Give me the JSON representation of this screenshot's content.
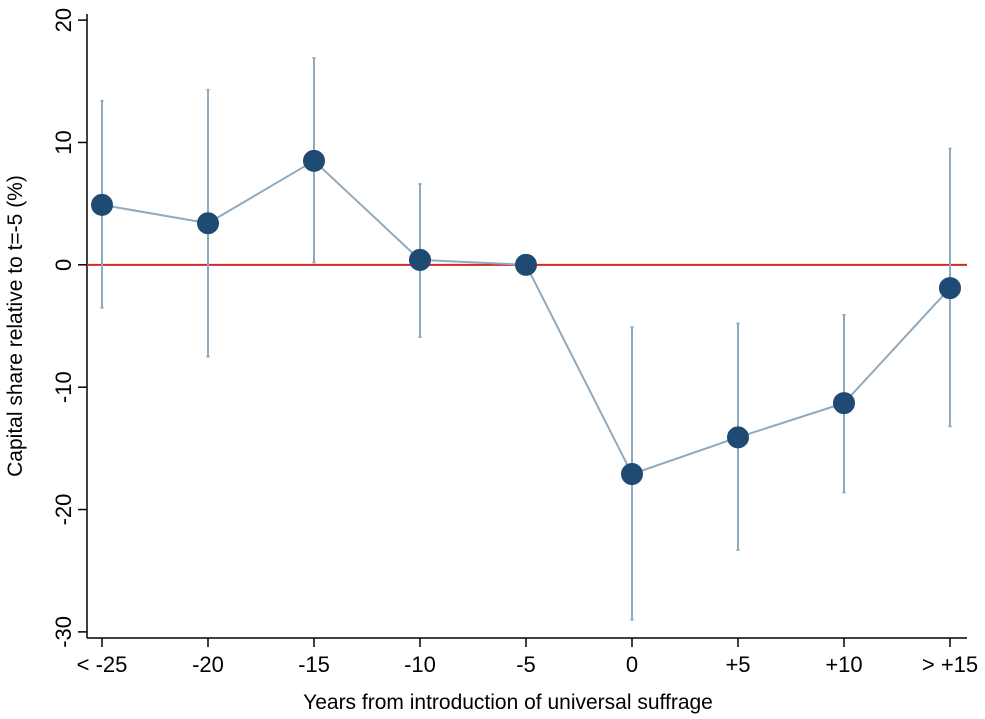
{
  "chart_data": {
    "type": "scatter",
    "title": "",
    "xlabel": "Years from introduction of universal suffrage",
    "ylabel": "Capital share relative to t=-5 (%)",
    "categories": [
      "< -25",
      "-20",
      "-15",
      "-10",
      "-5",
      "0",
      "+5",
      "+10",
      "> +15"
    ],
    "yticks": [
      20,
      10,
      0,
      -10,
      -20,
      -30
    ],
    "ytick_labels": [
      "20",
      "10",
      "0",
      "-10",
      "-20",
      "-30"
    ],
    "ylim": [
      -30.5,
      20.5
    ],
    "reference_line": {
      "y": 0,
      "color": "#d62728"
    },
    "series": [
      {
        "values": [
          4.9,
          3.4,
          8.5,
          0.4,
          0.0,
          -17.1,
          -14.1,
          -11.3,
          -1.9
        ],
        "ci_lower": [
          -3.5,
          -7.5,
          0.2,
          -5.9,
          0.0,
          -29.0,
          -23.3,
          -18.6,
          -13.2
        ],
        "ci_upper": [
          13.4,
          14.3,
          16.9,
          6.6,
          0.0,
          -5.1,
          -4.8,
          -4.1,
          9.5
        ],
        "color": "#1f4a73",
        "line_color": "#8fa9be",
        "ci_color": "#8fa9be"
      }
    ],
    "grid": false,
    "legend": "none"
  }
}
